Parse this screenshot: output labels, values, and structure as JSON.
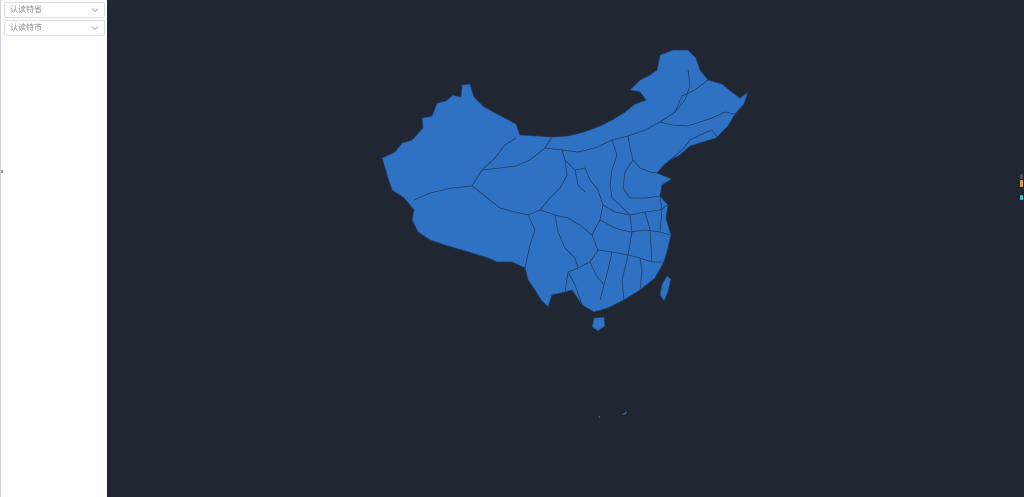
{
  "sidebar": {
    "selects": [
      {
        "value": "认读特省"
      },
      {
        "value": "认读特市"
      }
    ]
  },
  "map": {
    "region_fill": "#2f72c4",
    "border_color": "#1f3d66",
    "background": "#212633"
  },
  "legend": {
    "colors": [
      "#4a5163",
      "#d9a14a",
      "#3fc7c0"
    ]
  }
}
